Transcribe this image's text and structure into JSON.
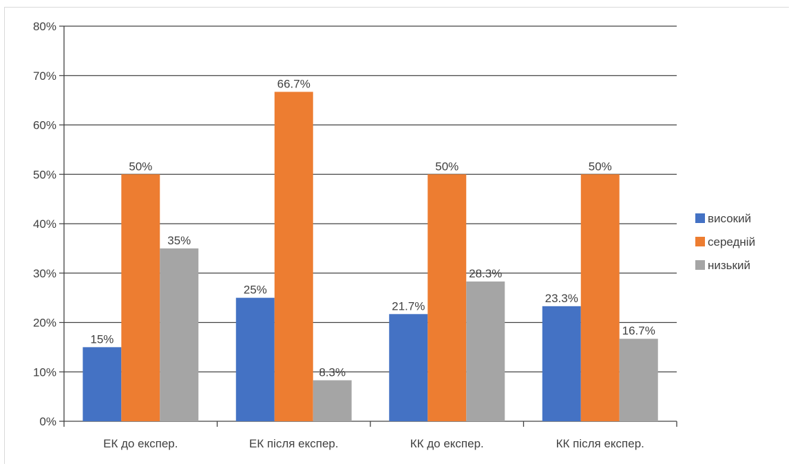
{
  "chart_data": {
    "type": "bar",
    "categories": [
      "ЕК до експер.",
      "ЕК після експер.",
      "КК до експер.",
      "КК після експер."
    ],
    "series": [
      {
        "name": "високий",
        "color": "#4472c4",
        "values": [
          15,
          25,
          21.7,
          23.3
        ],
        "labels": [
          "15%",
          "25%",
          "21.7%",
          "23.3%"
        ]
      },
      {
        "name": "середній",
        "color": "#ed7d31",
        "values": [
          50,
          66.7,
          50,
          50
        ],
        "labels": [
          "50%",
          "66.7%",
          "50%",
          "50%"
        ]
      },
      {
        "name": "низький",
        "color": "#a5a5a5",
        "values": [
          35,
          8.3,
          28.3,
          16.7
        ],
        "labels": [
          "35%",
          "8.3%",
          "28.3%",
          "16.7%"
        ]
      }
    ],
    "yticks": [
      "0%",
      "10%",
      "20%",
      "30%",
      "40%",
      "50%",
      "60%",
      "70%",
      "80%"
    ],
    "ylim": [
      0,
      80
    ],
    "grid": true,
    "legend_position": "right"
  }
}
